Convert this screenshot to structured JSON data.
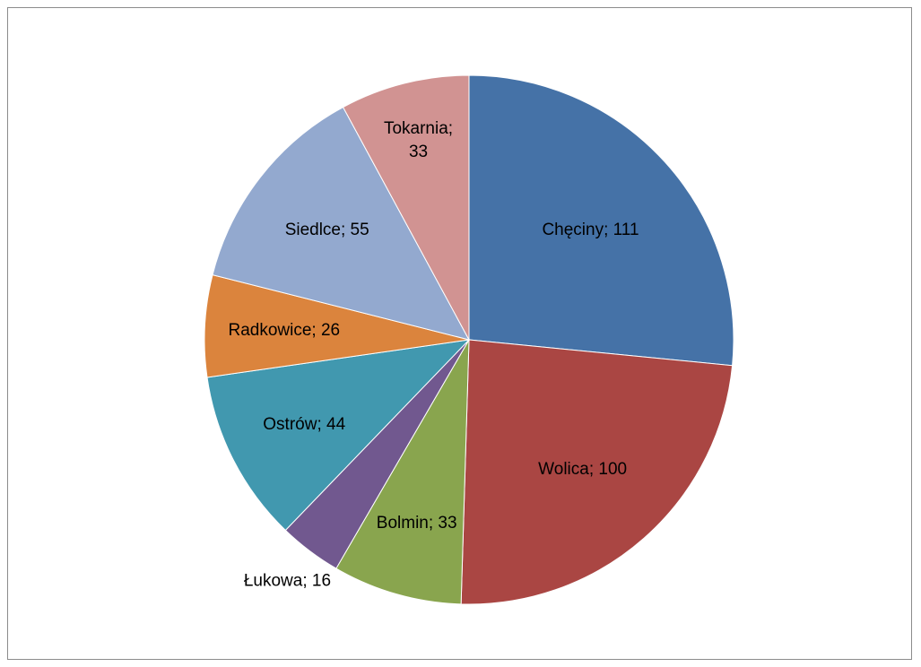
{
  "chart_data": {
    "type": "pie",
    "start_angle_deg": 0,
    "direction": "clockwise",
    "slices": [
      {
        "label": "Chęciny",
        "value": 111,
        "color": "#4572a7",
        "display": [
          "Chęciny; 111"
        ]
      },
      {
        "label": "Wolica",
        "value": 100,
        "color": "#aa4643",
        "display": [
          "Wolica; 100"
        ]
      },
      {
        "label": "Bolmin",
        "value": 33,
        "color": "#89a54e",
        "display": [
          "Bolmin; 33"
        ]
      },
      {
        "label": "Łukowa",
        "value": 16,
        "color": "#71588f",
        "display": [
          "Łukowa; 16"
        ]
      },
      {
        "label": "Ostrów",
        "value": 44,
        "color": "#4198af",
        "display": [
          "Ostrów; 44"
        ]
      },
      {
        "label": "Radkowice",
        "value": 26,
        "color": "#db843d",
        "display": [
          "Radkowice; 26"
        ]
      },
      {
        "label": "Siedlce",
        "value": 55,
        "color": "#93a9cf",
        "display": [
          "Siedlce; 55"
        ]
      },
      {
        "label": "Tokarnia",
        "value": 33,
        "color": "#d19392",
        "display": [
          "Tokarnia;",
          "33"
        ]
      }
    ]
  }
}
